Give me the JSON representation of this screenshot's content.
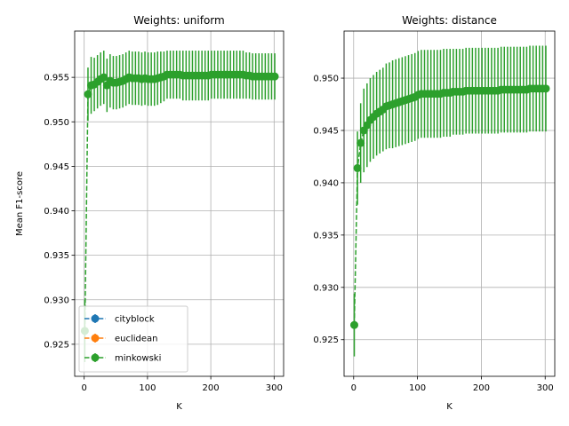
{
  "chart_data": [
    {
      "type": "line",
      "title": "Weights: uniform",
      "xlabel": "K",
      "ylabel": "Mean F1-score",
      "xlim": [
        -15,
        315
      ],
      "ylim": [
        0.9214,
        0.9602
      ],
      "xticks": [
        0,
        100,
        200,
        300
      ],
      "yticks": [
        0.925,
        0.93,
        0.935,
        0.94,
        0.945,
        0.95,
        0.955
      ],
      "ytick_labels": [
        "0.925",
        "0.930",
        "0.935",
        "0.940",
        "0.945",
        "0.950",
        "0.955"
      ],
      "grid": true,
      "legend": {
        "position": "lower-left",
        "entries": [
          "cityblock",
          "euclidean",
          "minkowski"
        ]
      },
      "series": [
        {
          "name": "minkowski",
          "color": "#2ca02c",
          "x": [
            1,
            6,
            11,
            16,
            21,
            26,
            31,
            36,
            41,
            46,
            51,
            56,
            61,
            66,
            71,
            76,
            81,
            86,
            91,
            96,
            101,
            106,
            111,
            116,
            121,
            126,
            131,
            136,
            141,
            146,
            151,
            156,
            161,
            166,
            171,
            176,
            181,
            186,
            191,
            196,
            201,
            206,
            211,
            216,
            221,
            226,
            231,
            236,
            241,
            246,
            251,
            256,
            261,
            266,
            271,
            276,
            281,
            286,
            291,
            296,
            301
          ],
          "y": [
            0.9265,
            0.9531,
            0.9541,
            0.9542,
            0.9545,
            0.9548,
            0.955,
            0.9541,
            0.9546,
            0.9544,
            0.9544,
            0.9545,
            0.9546,
            0.9548,
            0.955,
            0.9549,
            0.9549,
            0.9549,
            0.9548,
            0.9549,
            0.9548,
            0.9548,
            0.9548,
            0.9549,
            0.955,
            0.9551,
            0.9553,
            0.9553,
            0.9553,
            0.9553,
            0.9553,
            0.9552,
            0.9552,
            0.9552,
            0.9552,
            0.9552,
            0.9552,
            0.9552,
            0.9552,
            0.9552,
            0.9553,
            0.9553,
            0.9553,
            0.9553,
            0.9553,
            0.9553,
            0.9553,
            0.9553,
            0.9553,
            0.9553,
            0.9553,
            0.9552,
            0.9552,
            0.9551,
            0.9551,
            0.9551,
            0.9551,
            0.9551,
            0.9551,
            0.9551,
            0.9551
          ],
          "err": [
            0.0035,
            0.003,
            0.0032,
            0.003,
            0.003,
            0.003,
            0.003,
            0.003,
            0.003,
            0.003,
            0.003,
            0.003,
            0.003,
            0.003,
            0.003,
            0.003,
            0.003,
            0.003,
            0.003,
            0.003,
            0.003,
            0.003,
            0.003,
            0.003,
            0.0029,
            0.0028,
            0.0027,
            0.0027,
            0.0027,
            0.0027,
            0.0027,
            0.0028,
            0.0028,
            0.0028,
            0.0028,
            0.0028,
            0.0028,
            0.0028,
            0.0028,
            0.0028,
            0.0027,
            0.0027,
            0.0027,
            0.0027,
            0.0027,
            0.0027,
            0.0027,
            0.0027,
            0.0027,
            0.0027,
            0.0027,
            0.0026,
            0.0026,
            0.0026,
            0.0026,
            0.0026,
            0.0026,
            0.0026,
            0.0026,
            0.0026,
            0.0026
          ]
        }
      ]
    },
    {
      "type": "line",
      "title": "Weights: distance",
      "xlabel": "K",
      "ylabel": "",
      "xlim": [
        -15,
        315
      ],
      "ylim": [
        0.9215,
        0.9545
      ],
      "xticks": [
        0,
        100,
        200,
        300
      ],
      "yticks": [
        0.925,
        0.93,
        0.935,
        0.94,
        0.945,
        0.95
      ],
      "ytick_labels": [
        "0.925",
        "0.930",
        "0.935",
        "0.940",
        "0.945",
        "0.950"
      ],
      "grid": true,
      "series": [
        {
          "name": "minkowski",
          "color": "#2ca02c",
          "x": [
            1,
            6,
            11,
            16,
            21,
            26,
            31,
            36,
            41,
            46,
            51,
            56,
            61,
            66,
            71,
            76,
            81,
            86,
            91,
            96,
            101,
            106,
            111,
            116,
            121,
            126,
            131,
            136,
            141,
            146,
            151,
            156,
            161,
            166,
            171,
            176,
            181,
            186,
            191,
            196,
            201,
            206,
            211,
            216,
            221,
            226,
            231,
            236,
            241,
            246,
            251,
            256,
            261,
            266,
            271,
            276,
            281,
            286,
            291,
            296,
            301
          ],
          "y": [
            0.9264,
            0.9414,
            0.9438,
            0.945,
            0.9455,
            0.946,
            0.9463,
            0.9466,
            0.9468,
            0.947,
            0.9473,
            0.9474,
            0.9475,
            0.9476,
            0.9477,
            0.9478,
            0.9479,
            0.948,
            0.9481,
            0.9482,
            0.9484,
            0.9485,
            0.9485,
            0.9485,
            0.9485,
            0.9485,
            0.9485,
            0.9485,
            0.9486,
            0.9486,
            0.9486,
            0.9487,
            0.9487,
            0.9487,
            0.9487,
            0.9488,
            0.9488,
            0.9488,
            0.9488,
            0.9488,
            0.9488,
            0.9488,
            0.9488,
            0.9488,
            0.9488,
            0.9488,
            0.9489,
            0.9489,
            0.9489,
            0.9489,
            0.9489,
            0.9489,
            0.9489,
            0.9489,
            0.9489,
            0.949,
            0.949,
            0.949,
            0.949,
            0.949,
            0.949
          ],
          "err": [
            0.003,
            0.0035,
            0.0038,
            0.004,
            0.004,
            0.004,
            0.004,
            0.004,
            0.004,
            0.004,
            0.0041,
            0.0041,
            0.0042,
            0.0042,
            0.0042,
            0.0042,
            0.0042,
            0.0042,
            0.0042,
            0.0042,
            0.0042,
            0.0042,
            0.0042,
            0.0042,
            0.0042,
            0.0042,
            0.0042,
            0.0042,
            0.0042,
            0.0042,
            0.0042,
            0.0041,
            0.0041,
            0.0041,
            0.0041,
            0.0041,
            0.0041,
            0.0041,
            0.0041,
            0.0041,
            0.0041,
            0.0041,
            0.0041,
            0.0041,
            0.0041,
            0.0041,
            0.0041,
            0.0041,
            0.0041,
            0.0041,
            0.0041,
            0.0041,
            0.0041,
            0.0041,
            0.0041,
            0.0041,
            0.0041,
            0.0041,
            0.0041,
            0.0041,
            0.0041
          ]
        }
      ]
    }
  ],
  "legend_items": [
    {
      "label": "cityblock",
      "color": "#1f77b4"
    },
    {
      "label": "euclidean",
      "color": "#ff7f0e"
    },
    {
      "label": "minkowski",
      "color": "#2ca02c"
    }
  ]
}
